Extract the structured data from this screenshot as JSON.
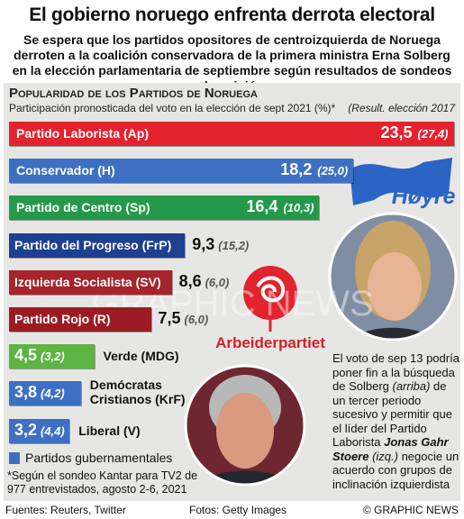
{
  "chart_data": {
    "type": "bar",
    "title": "El gobierno noruego enfrenta derrota electoral",
    "subtitle": "Se espera que los partidos opositores de centroizquierda de Noruega derroten a la coalición conservadora de la primera ministra Erna Solberg en la elección parlamentaria de septiembre según resultados de sondeos de opinión",
    "heading": "Popularidad de los Partidos  de Noruega",
    "axis_label": "Participación pronosticada del voto en la elección de sept 2021 (%)*",
    "previous_note": "(Result. elección 2017",
    "categories": [
      "Partido Laborista (Ap)",
      "Conservador (H)",
      "Partido de Centro (Sp)",
      "Partido del Progreso (FrP)",
      "Izquierda Socialista (SV)",
      "Partido Rojo (R)",
      "Verde (MDG)",
      "Demócratas Cristianos (KrF)",
      "Liberal (V)"
    ],
    "values": [
      23.5,
      18.2,
      16.4,
      9.3,
      8.6,
      7.5,
      4.5,
      3.8,
      3.2
    ],
    "value_labels": [
      "23,5",
      "18,2",
      "16,4",
      "9,3",
      "8,6",
      "7,5",
      "4,5",
      "3,8",
      "3,2"
    ],
    "previous_values": [
      27.4,
      25.0,
      10.3,
      15.2,
      6.0,
      6.0,
      3.2,
      4.2,
      4.4
    ],
    "previous_labels": [
      "(27,4)",
      "(25,0)",
      "(10,3)",
      "(15,2)",
      "(6,0)",
      "(6,0)",
      "(3,2)",
      "(4,2)",
      "(4,4)"
    ],
    "colors": [
      "#e3232e",
      "#3d70c2",
      "#25994a",
      "#1f3f91",
      "#a6242b",
      "#9c1b22",
      "#5db443",
      "#3d70c2",
      "#3d70c2"
    ],
    "legend": {
      "label": "Partidos gubernamentales",
      "color": "#3d70c2"
    },
    "footnote": "*Según el sondeo Kantar para TV2 de 977 entrevistados, agosto 2-6, 2021",
    "annotation": [
      {
        "text": "El voto de sep 13 podría poner fin a la búsqueda de Solberg ",
        "style": "normal"
      },
      {
        "text": "(arriba)",
        "style": "italic"
      },
      {
        "text": " de un tercer periodo sucesivo y permitir que el líder del Partido Laborista ",
        "style": "normal"
      },
      {
        "text": "Jonas Gahr Stoere",
        "style": "bold-italic"
      },
      {
        "text": " (izq.)",
        "style": "italic"
      },
      {
        "text": " negocie un acuerdo con grupos de inclinación izquierdista",
        "style": "normal"
      }
    ],
    "logos": [
      "Høyre",
      "Arbeiderpartiet"
    ],
    "watermark": "GRAPHIC NEWS",
    "sources": "Fuentes: Reuters, Twitter",
    "photos": "Fotos: Getty Images",
    "credit": "© GRAPHIC NEWS"
  }
}
